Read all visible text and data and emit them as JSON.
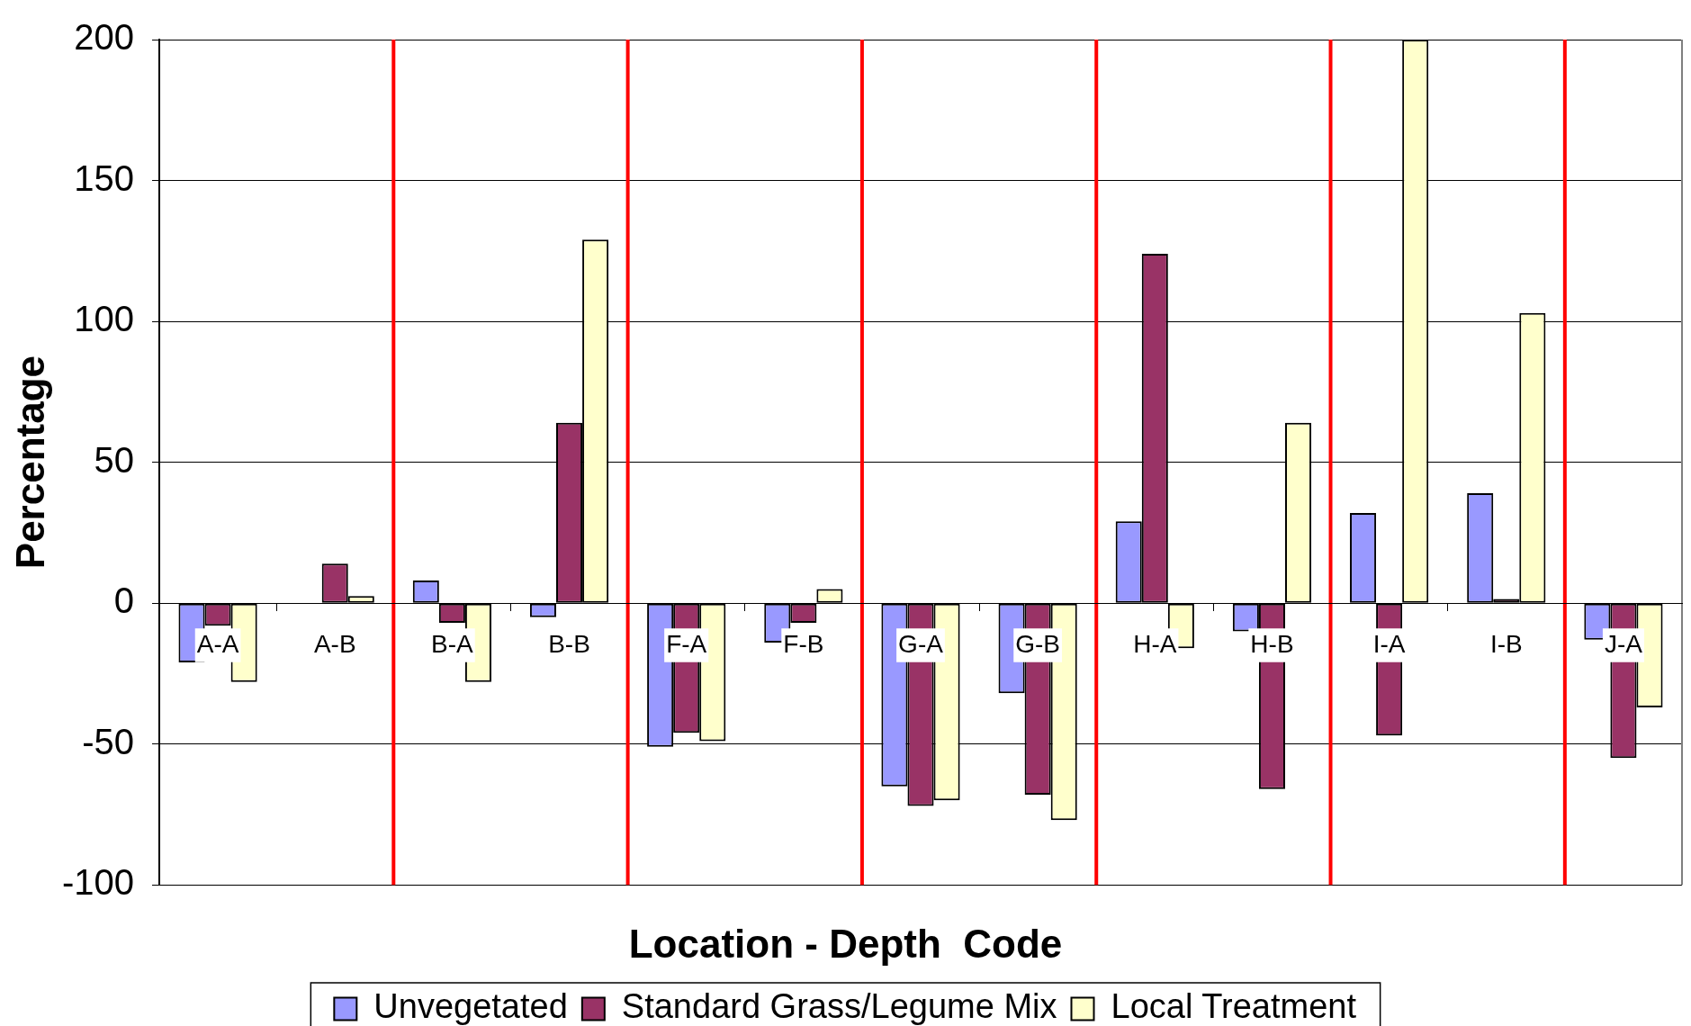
{
  "chart_data": {
    "type": "bar",
    "xlabel": "Location - Depth  Code",
    "ylabel": "Percentage",
    "categories": [
      "A-A",
      "A-B",
      "B-A",
      "B-B",
      "F-A",
      "F-B",
      "G-A",
      "G-B",
      "H-A",
      "H-B",
      "I-A",
      "I-B",
      "J-A"
    ],
    "series": [
      {
        "name": "Unvegetated",
        "color": "#9999ff",
        "values": [
          -21,
          null,
          8,
          -5,
          -51,
          -14,
          -65,
          -32,
          29,
          -10,
          32,
          39,
          -13
        ]
      },
      {
        "name": "Standard Grass/Legume Mix",
        "color": "#993366",
        "values": [
          -8,
          14,
          -7,
          64,
          -46,
          -7,
          -72,
          -68,
          124,
          -66,
          -47,
          1.5,
          -55
        ]
      },
      {
        "name": "Local Treatment",
        "color": "#ffffcc",
        "values": [
          -28,
          2.5,
          -28,
          129,
          -49,
          5,
          -70,
          -77,
          -16,
          64,
          200,
          103,
          -37
        ]
      }
    ],
    "ylim": [
      -100,
      200
    ],
    "yticks": [
      -100,
      -50,
      0,
      50,
      100,
      150,
      200
    ],
    "grid": "y",
    "legend": "bottom"
  }
}
